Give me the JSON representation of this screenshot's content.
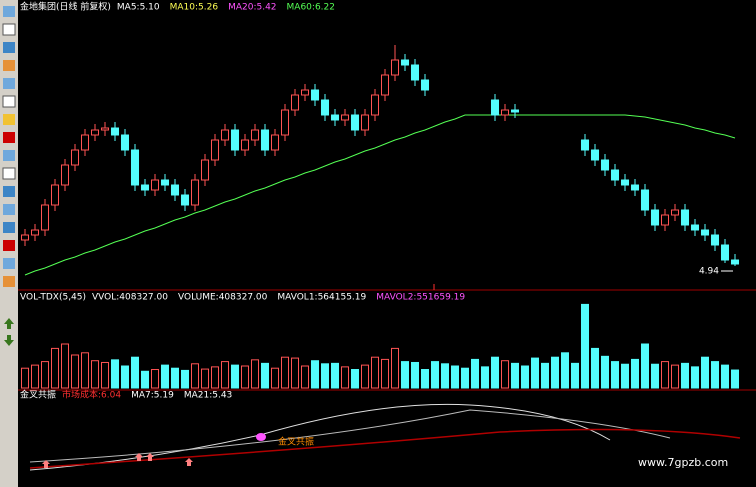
{
  "chart_data": [
    {
      "type": "candlestick",
      "title": "金地集团(日线 前复权)",
      "legend": [
        {
          "label": "MA5:5.10",
          "color": "#ffffff"
        },
        {
          "label": "MA10:5.26",
          "color": "#ffff54"
        },
        {
          "label": "MA20:5.42",
          "color": "#ff54ff"
        },
        {
          "label": "MA60:6.22",
          "color": "#54ff54",
          "values": [
            4.85,
            4.89,
            4.92,
            4.96,
            5.0,
            5.03,
            5.07,
            5.1,
            5.14,
            5.18,
            5.21,
            5.25,
            5.29,
            5.32,
            5.36,
            5.4,
            5.43,
            5.47,
            5.5,
            5.54,
            5.58,
            5.61,
            5.65,
            5.69,
            5.72,
            5.76,
            5.8,
            5.83,
            5.87,
            5.9,
            5.94,
            5.98,
            6.01,
            6.05,
            6.09,
            6.12,
            6.16,
            6.2,
            6.23,
            6.27,
            6.3,
            6.34,
            6.38,
            6.41,
            6.45,
            6.45,
            6.45,
            6.45,
            6.45,
            6.45,
            6.45,
            6.45,
            6.45,
            6.45,
            6.45,
            6.45,
            6.45,
            6.45,
            6.45,
            6.45,
            6.45,
            6.44,
            6.43,
            6.41,
            6.39,
            6.37,
            6.35,
            6.32,
            6.3,
            6.27,
            6.25,
            6.22
          ]
        }
      ],
      "open": [
        5.2,
        5.25,
        5.3,
        5.55,
        5.75,
        5.95,
        6.1,
        6.25,
        6.3,
        6.32,
        6.25,
        6.1,
        5.75,
        5.7,
        5.8,
        5.75,
        5.65,
        5.55,
        5.8,
        6.0,
        6.2,
        6.3,
        6.1,
        6.2,
        6.3,
        6.1,
        6.25,
        6.5,
        6.65,
        6.7,
        6.6,
        6.45,
        6.4,
        6.45,
        6.3,
        6.45,
        6.65,
        6.85,
        7.0,
        6.95,
        6.8,
        null,
        null,
        null,
        null,
        null,
        null,
        6.6,
        6.45,
        6.5,
        null,
        null,
        null,
        null,
        null,
        null,
        6.2,
        6.1,
        6.0,
        5.9,
        5.8,
        5.75,
        5.7,
        5.5,
        5.35,
        5.45,
        5.5,
        5.35,
        5.3,
        5.25,
        5.15,
        5.0
      ],
      "high": [
        5.31,
        5.36,
        5.61,
        5.81,
        6.01,
        6.16,
        6.31,
        6.36,
        6.38,
        6.38,
        6.31,
        6.16,
        5.81,
        5.86,
        5.86,
        5.81,
        5.71,
        5.86,
        6.06,
        6.26,
        6.36,
        6.36,
        6.26,
        6.36,
        6.36,
        6.31,
        6.56,
        6.71,
        6.76,
        6.76,
        6.66,
        6.51,
        6.51,
        6.51,
        6.51,
        6.71,
        6.91,
        7.15,
        7.06,
        7.01,
        6.86,
        null,
        null,
        null,
        null,
        null,
        null,
        6.66,
        6.56,
        6.56,
        null,
        null,
        null,
        null,
        null,
        null,
        6.26,
        6.16,
        6.06,
        5.96,
        5.86,
        5.81,
        5.76,
        5.56,
        5.51,
        5.56,
        5.56,
        5.41,
        5.36,
        5.31,
        5.21,
        5.06
      ],
      "low": [
        5.14,
        5.19,
        5.24,
        5.49,
        5.69,
        5.89,
        6.04,
        6.19,
        6.24,
        6.19,
        6.04,
        5.69,
        5.64,
        5.64,
        5.69,
        5.59,
        5.49,
        5.49,
        5.74,
        5.94,
        6.14,
        6.04,
        6.04,
        6.14,
        6.04,
        6.04,
        6.19,
        6.44,
        6.59,
        6.54,
        6.39,
        6.34,
        6.34,
        6.24,
        6.24,
        6.39,
        6.59,
        6.79,
        6.89,
        6.74,
        6.64,
        null,
        null,
        null,
        null,
        null,
        null,
        6.39,
        6.39,
        6.42,
        null,
        null,
        null,
        null,
        null,
        null,
        6.04,
        5.94,
        5.84,
        5.74,
        5.69,
        5.64,
        5.44,
        5.29,
        5.29,
        5.39,
        5.29,
        5.24,
        5.19,
        5.09,
        4.97,
        4.94
      ],
      "close": [
        5.25,
        5.3,
        5.55,
        5.75,
        5.95,
        6.1,
        6.25,
        6.3,
        6.32,
        6.25,
        6.1,
        5.75,
        5.7,
        5.8,
        5.75,
        5.65,
        5.55,
        5.8,
        6.0,
        6.2,
        6.3,
        6.1,
        6.2,
        6.3,
        6.1,
        6.25,
        6.5,
        6.65,
        6.7,
        6.6,
        6.45,
        6.4,
        6.45,
        6.3,
        6.45,
        6.65,
        6.85,
        7.0,
        6.95,
        6.8,
        6.7,
        null,
        null,
        null,
        null,
        null,
        null,
        6.45,
        6.5,
        6.48,
        null,
        null,
        null,
        null,
        null,
        null,
        6.1,
        6.0,
        5.9,
        5.8,
        5.75,
        5.7,
        5.5,
        5.35,
        5.45,
        5.5,
        5.35,
        5.3,
        5.25,
        5.15,
        5.0,
        4.96
      ],
      "annotation": "4.94",
      "ylim": [
        4.75,
        7.5
      ]
    },
    {
      "type": "volume",
      "title": "VOL-TDX(5,45)",
      "legend": [
        {
          "label": "VVOL:408327.00",
          "color": "#ffffff"
        },
        {
          "label": "VOLUME:408327.00",
          "color": "#ffffff"
        },
        {
          "label": "MAVOL1:564155.19",
          "color": "#ffffff"
        },
        {
          "label": "MAVOL2:551659.19",
          "color": "#ff54ff"
        }
      ],
      "values": [
        450000,
        520000,
        600000,
        900000,
        1000000,
        750000,
        800000,
        620000,
        580000,
        640000,
        500000,
        700000,
        380000,
        420000,
        520000,
        450000,
        400000,
        550000,
        430000,
        480000,
        600000,
        520000,
        500000,
        640000,
        560000,
        450000,
        700000,
        680000,
        500000,
        620000,
        550000,
        560000,
        480000,
        420000,
        520000,
        700000,
        650000,
        900000,
        600000,
        580000,
        420000,
        600000,
        550000,
        500000,
        450000,
        650000,
        480000,
        700000,
        620000,
        560000,
        500000,
        680000,
        560000,
        700000,
        800000,
        560000,
        1900000,
        900000,
        720000,
        600000,
        540000,
        650000,
        1000000,
        540000,
        600000,
        520000,
        560000,
        480000,
        700000,
        600000,
        520000,
        408327
      ],
      "ylim": [
        0,
        2000000
      ]
    },
    {
      "type": "indicator",
      "title": "金叉共振",
      "legend": [
        {
          "label": "市场成本:6.04",
          "color": "#ff3030"
        },
        {
          "label": "MA7:5.19",
          "color": "#ffffff"
        },
        {
          "label": "MA21:5.43",
          "color": "#ffffff"
        }
      ],
      "annotation": "金叉共振"
    }
  ],
  "watermark": "www.7gpzb.com"
}
